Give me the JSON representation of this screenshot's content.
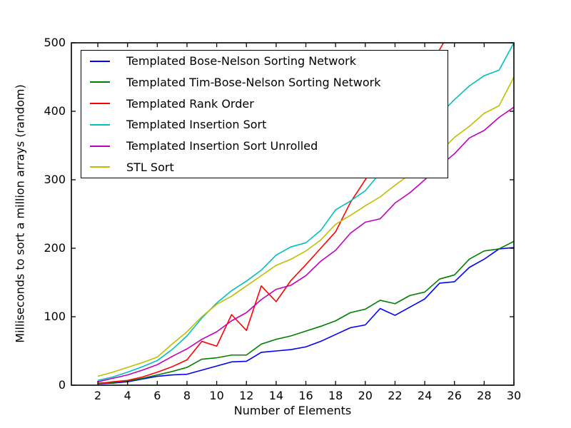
{
  "chart_data": {
    "type": "line",
    "title": "",
    "xlabel": "Number of Elements",
    "ylabel": "Milliseconds to sort a million arrays (random)",
    "xlim": [
      0.22,
      30
    ],
    "ylim": [
      0,
      500
    ],
    "xticks": [
      2,
      4,
      6,
      8,
      10,
      12,
      14,
      16,
      18,
      20,
      22,
      24,
      26,
      28,
      30
    ],
    "yticks": [
      0,
      100,
      200,
      300,
      400,
      500
    ],
    "grid": false,
    "legend_position": "upper left",
    "x": [
      2,
      3,
      4,
      5,
      6,
      7,
      8,
      9,
      10,
      11,
      12,
      13,
      14,
      15,
      16,
      17,
      18,
      19,
      20,
      21,
      22,
      23,
      24,
      25,
      26,
      27,
      28,
      29,
      30
    ],
    "series": [
      {
        "name": "Templated Bose-Nelson Sorting Network",
        "color": "#0000ff",
        "values": [
          2,
          3,
          5,
          9,
          13,
          15,
          16,
          22,
          28,
          34,
          35,
          48,
          50,
          52,
          56,
          64,
          74,
          84,
          88,
          112,
          102,
          114,
          126,
          149,
          151,
          172,
          184,
          199,
          201
        ]
      },
      {
        "name": "Templated Tim-Bose-Nelson Sorting Network",
        "color": "#007f00",
        "values": [
          3,
          4,
          6,
          10,
          15,
          20,
          26,
          38,
          40,
          44,
          44,
          60,
          67,
          72,
          79,
          86,
          94,
          106,
          111,
          124,
          119,
          131,
          136,
          155,
          161,
          184,
          196,
          199,
          210
        ]
      },
      {
        "name": "Templated Rank Order",
        "color": "#ff0000",
        "values": [
          2,
          5,
          7,
          12,
          19,
          27,
          37,
          64,
          57,
          103,
          80,
          145,
          122,
          153,
          176,
          200,
          224,
          267,
          300,
          338,
          376,
          414,
          452,
          490,
          528
        ]
      },
      {
        "name": "Templated Insertion Sort",
        "color": "#00bfbf",
        "values": [
          7,
          12,
          19,
          27,
          36,
          52,
          72,
          98,
          120,
          138,
          152,
          168,
          190,
          202,
          208,
          226,
          256,
          269,
          284,
          310,
          330,
          350,
          372,
          395,
          417,
          437,
          452,
          460,
          500
        ]
      },
      {
        "name": "Templated Insertion Sort Unrolled",
        "color": "#bf00bf",
        "values": [
          5,
          10,
          15,
          22,
          30,
          42,
          53,
          67,
          78,
          94,
          106,
          125,
          140,
          146,
          160,
          181,
          197,
          222,
          238,
          243,
          266,
          281,
          300,
          320,
          338,
          361,
          372,
          391,
          406
        ]
      },
      {
        "name": "STL Sort",
        "color": "#bfbf00",
        "values": [
          13,
          19,
          26,
          33,
          41,
          60,
          78,
          100,
          118,
          130,
          145,
          160,
          175,
          184,
          196,
          212,
          235,
          248,
          262,
          275,
          292,
          308,
          322,
          340,
          362,
          378,
          397,
          408,
          450
        ]
      }
    ]
  }
}
